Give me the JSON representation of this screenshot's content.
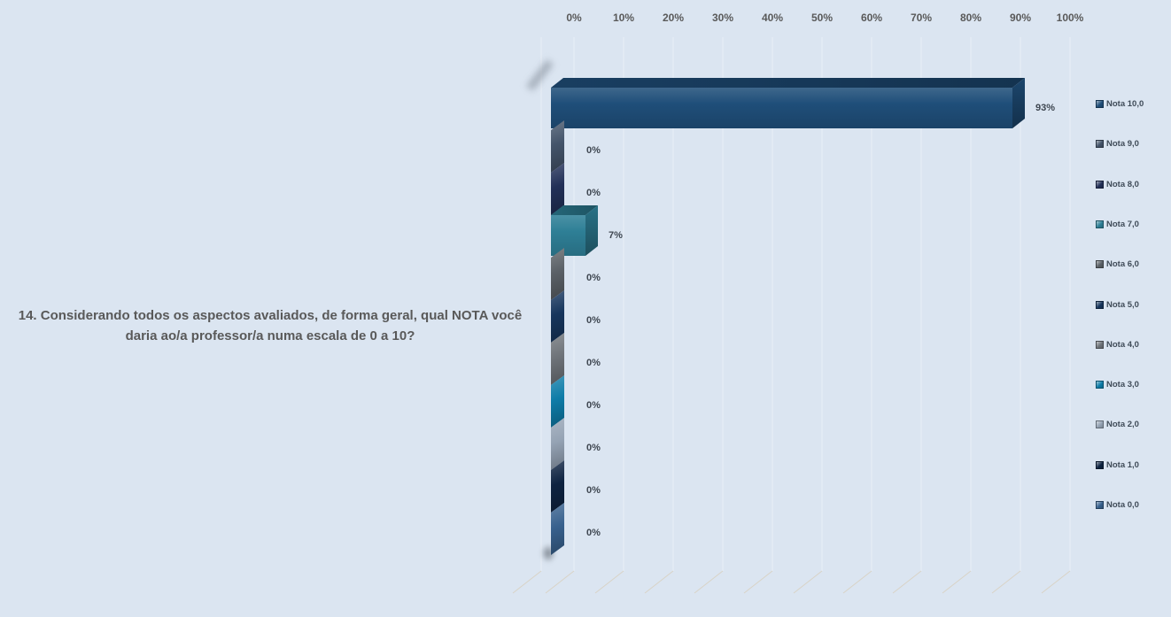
{
  "chart_data": {
    "type": "bar",
    "orientation": "horizontal",
    "effect": "3d",
    "question": "14. Considerando todos os aspectos avaliados, de forma geral, qual NOTA você daria ao/a professor/a numa escala de 0 a 10?",
    "x_ticks": [
      "0%",
      "10%",
      "20%",
      "30%",
      "40%",
      "50%",
      "60%",
      "70%",
      "80%",
      "90%",
      "100%"
    ],
    "xlim": [
      0,
      100
    ],
    "grid": true,
    "legend_position": "right",
    "background_color": "#DBE5F1",
    "series": [
      {
        "label": "Nota 10,0",
        "value": 93,
        "value_label": "93%",
        "color": "#1F4E79"
      },
      {
        "label": "Nota 9,0",
        "value": 0,
        "value_label": "0%",
        "color": "#44546A"
      },
      {
        "label": "Nota 8,0",
        "value": 0,
        "value_label": "0%",
        "color": "#223058"
      },
      {
        "label": "Nota 7,0",
        "value": 7,
        "value_label": "7%",
        "color": "#2E7F96"
      },
      {
        "label": "Nota 6,0",
        "value": 0,
        "value_label": "0%",
        "color": "#5B6167"
      },
      {
        "label": "Nota 5,0",
        "value": 0,
        "value_label": "0%",
        "color": "#17365D"
      },
      {
        "label": "Nota 4,0",
        "value": 0,
        "value_label": "0%",
        "color": "#6F747A"
      },
      {
        "label": "Nota 3,0",
        "value": 0,
        "value_label": "0%",
        "color": "#0E7CA8"
      },
      {
        "label": "Nota 2,0",
        "value": 0,
        "value_label": "0%",
        "color": "#95A3B4"
      },
      {
        "label": "Nota 1,0",
        "value": 0,
        "value_label": "0%",
        "color": "#0E2341"
      },
      {
        "label": "Nota 0,0",
        "value": 0,
        "value_label": "0%",
        "color": "#38618E"
      }
    ]
  }
}
